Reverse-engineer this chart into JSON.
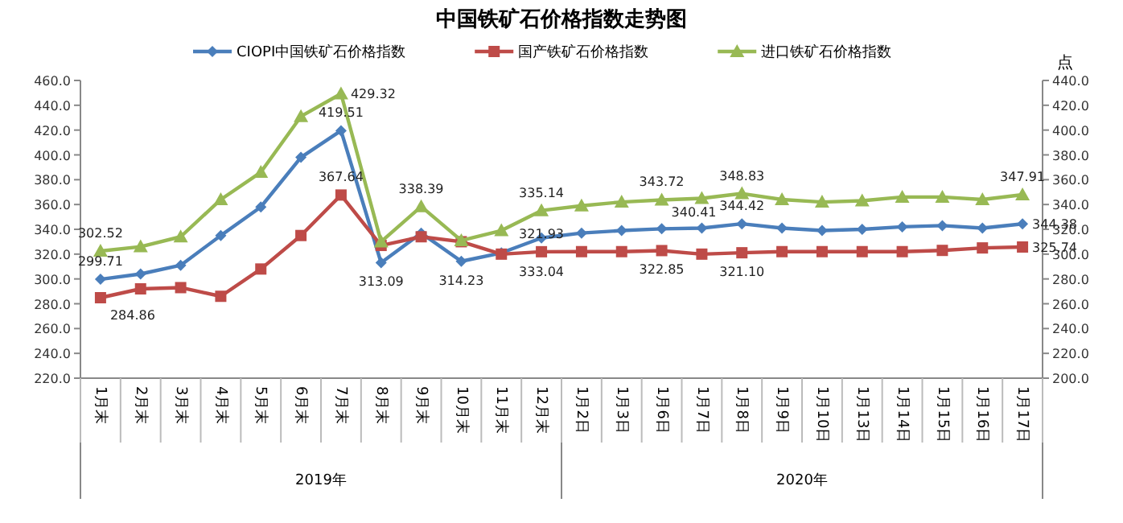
{
  "chart_data": {
    "type": "line",
    "title": "中国铁矿石价格指数走势图",
    "y2label": "点",
    "legend": "top",
    "grid": false,
    "categories": [
      "1月末",
      "2月末",
      "3月末",
      "4月末",
      "5月末",
      "6月末",
      "7月末",
      "8月末",
      "9月末",
      "10月末",
      "11月末",
      "12月末",
      "1月2日",
      "1月3日",
      "1月6日",
      "1月7日",
      "1月8日",
      "1月9日",
      "1月10日",
      "1月13日",
      "1月14日",
      "1月15日",
      "1月16日",
      "1月17日"
    ],
    "annotations": [
      "2019年",
      "2020年"
    ],
    "ylim": [
      220,
      460
    ],
    "yticks": [
      {
        "value": 220,
        "label": "220.0"
      },
      {
        "value": 240,
        "label": "240.0"
      },
      {
        "value": 260,
        "label": "260.0"
      },
      {
        "value": 280,
        "label": "280.0"
      },
      {
        "value": 300,
        "label": "300.0"
      },
      {
        "value": 320,
        "label": "320.0"
      },
      {
        "value": 340,
        "label": "340.0"
      },
      {
        "value": 360,
        "label": "360.0"
      },
      {
        "value": 380,
        "label": "380.0"
      },
      {
        "value": 400,
        "label": "400.0"
      },
      {
        "value": 420,
        "label": "420.0"
      },
      {
        "value": 440,
        "label": "440.0"
      },
      {
        "value": 460,
        "label": "460.0"
      }
    ],
    "y2lim": [
      200,
      440
    ],
    "y2ticks": [
      {
        "value": 200,
        "label": "200.0"
      },
      {
        "value": 220,
        "label": "220.0"
      },
      {
        "value": 240,
        "label": "240.0"
      },
      {
        "value": 260,
        "label": "260.0"
      },
      {
        "value": 280,
        "label": "280.0"
      },
      {
        "value": 300,
        "label": "300.0"
      },
      {
        "value": 320,
        "label": "320.0"
      },
      {
        "value": 340,
        "label": "340.0"
      },
      {
        "value": 360,
        "label": "360.0"
      },
      {
        "value": 380,
        "label": "380.0"
      },
      {
        "value": 400,
        "label": "400.0"
      },
      {
        "value": 420,
        "label": "420.0"
      },
      {
        "value": 440,
        "label": "440.0"
      }
    ],
    "series": [
      {
        "name": "CIOPI中国铁矿石价格指数",
        "color": "#4a7ebb",
        "marker": "diamond",
        "values": [
          299.71,
          304,
          311,
          335,
          358,
          398,
          419.51,
          313.09,
          337,
          314.23,
          321,
          333.04,
          337,
          339,
          340.41,
          341,
          344.42,
          341,
          339,
          340,
          342,
          343,
          341,
          344.38
        ],
        "value_labels": [
          "299.71",
          null,
          null,
          null,
          null,
          null,
          "419.51",
          "313.09",
          null,
          "314.23",
          null,
          "333.04",
          null,
          null,
          "340.41",
          null,
          "344.42",
          null,
          null,
          null,
          null,
          null,
          null,
          "344.38"
        ]
      },
      {
        "name": "国产铁矿石价格指数",
        "color": "#be4b48",
        "marker": "square",
        "values": [
          284.86,
          292,
          293,
          286,
          308,
          335,
          367.64,
          327,
          334,
          330,
          320,
          321.93,
          322,
          322,
          322.85,
          320,
          321.1,
          322,
          322,
          322,
          322,
          323,
          325,
          325.74
        ],
        "value_labels": [
          "284.86",
          null,
          null,
          null,
          null,
          null,
          "367.64",
          null,
          null,
          null,
          null,
          "321.93",
          null,
          null,
          "322.85",
          null,
          "321.10",
          null,
          null,
          null,
          null,
          null,
          null,
          "325.74"
        ]
      },
      {
        "name": "进口铁矿石价格指数",
        "color": "#98b954",
        "marker": "triangle",
        "axis": "y2",
        "values": [
          302.52,
          306,
          314,
          344,
          366,
          411,
          429.32,
          310,
          338.39,
          311,
          319,
          335.14,
          339,
          342,
          343.72,
          345,
          348.83,
          344,
          342,
          343,
          346,
          346,
          344,
          347.91
        ],
        "value_labels": [
          "302.52",
          null,
          null,
          null,
          null,
          null,
          "429.32",
          null,
          "338.39",
          null,
          null,
          "335.14",
          null,
          null,
          "343.72",
          null,
          "348.83",
          null,
          null,
          null,
          null,
          null,
          null,
          "347.91"
        ]
      }
    ]
  }
}
